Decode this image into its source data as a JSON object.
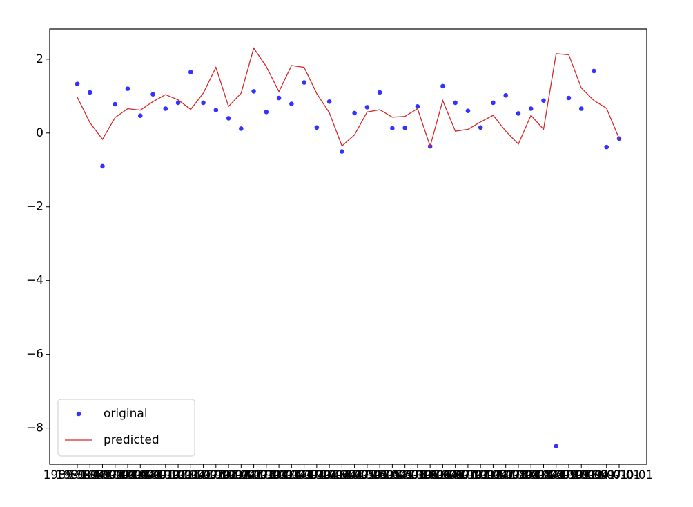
{
  "chart_data": {
    "type": "scatter_line",
    "categories": [
      "1989-01-01",
      "1989-04-01",
      "1989-07-01",
      "1989-10-01",
      "1990-01-01",
      "1990-04-01",
      "1990-07-01",
      "1990-10-01",
      "1991-01-01",
      "1991-04-01",
      "1991-07-01",
      "1991-10-01",
      "1992-01-01",
      "1992-04-01",
      "1992-07-01",
      "1992-10-01",
      "1993-01-01",
      "1993-04-01",
      "1993-07-01",
      "1993-10-01",
      "1994-01-01",
      "1994-04-01",
      "1994-07-01",
      "1994-10-01",
      "1995-01-01",
      "1995-04-01",
      "1995-07-01",
      "1995-10-01",
      "1996-01-01",
      "1996-04-01",
      "1996-07-01",
      "1996-10-01",
      "1997-01-01",
      "1997-04-01",
      "1997-07-01",
      "1997-10-01",
      "1998-01-01",
      "1998-04-01",
      "1998-07-01",
      "1998-10-01",
      "1999-01-01",
      "1999-04-01",
      "1999-07-01",
      "1999-10-01"
    ],
    "series": [
      {
        "name": "original",
        "color": "#0000ff",
        "kind": "scatter",
        "values": [
          1.33,
          1.1,
          -0.9,
          0.78,
          1.2,
          0.47,
          1.05,
          0.66,
          0.82,
          1.65,
          0.82,
          0.62,
          0.4,
          0.12,
          1.13,
          0.57,
          0.95,
          0.79,
          1.37,
          0.15,
          0.85,
          -0.5,
          0.54,
          0.7,
          1.1,
          0.13,
          0.14,
          0.72,
          -0.36,
          1.27,
          0.82,
          0.6,
          0.15,
          0.82,
          1.02,
          0.53,
          0.66,
          0.88,
          -8.49,
          0.95,
          0.66,
          1.68,
          -0.38,
          -0.15
        ]
      },
      {
        "name": "predicted",
        "color": "#d62728",
        "kind": "line",
        "values": [
          0.97,
          0.28,
          -0.17,
          0.42,
          0.66,
          0.62,
          0.85,
          1.04,
          0.9,
          0.64,
          1.08,
          1.78,
          0.72,
          1.08,
          2.3,
          1.8,
          1.12,
          1.83,
          1.78,
          1.07,
          0.55,
          -0.35,
          -0.05,
          0.57,
          0.63,
          0.43,
          0.45,
          0.66,
          -0.36,
          0.88,
          0.05,
          0.1,
          0.3,
          0.48,
          0.05,
          -0.3,
          0.48,
          0.1,
          2.15,
          2.12,
          1.22,
          0.88,
          0.67,
          -0.15
        ]
      }
    ],
    "ylim": [
      -8.98,
      2.82
    ],
    "yticks": [
      {
        "value": -8,
        "label": "−8"
      },
      {
        "value": -6,
        "label": "−6"
      },
      {
        "value": -4,
        "label": "−4"
      },
      {
        "value": -2,
        "label": "−2"
      },
      0,
      2
    ],
    "legend": "lower left"
  }
}
